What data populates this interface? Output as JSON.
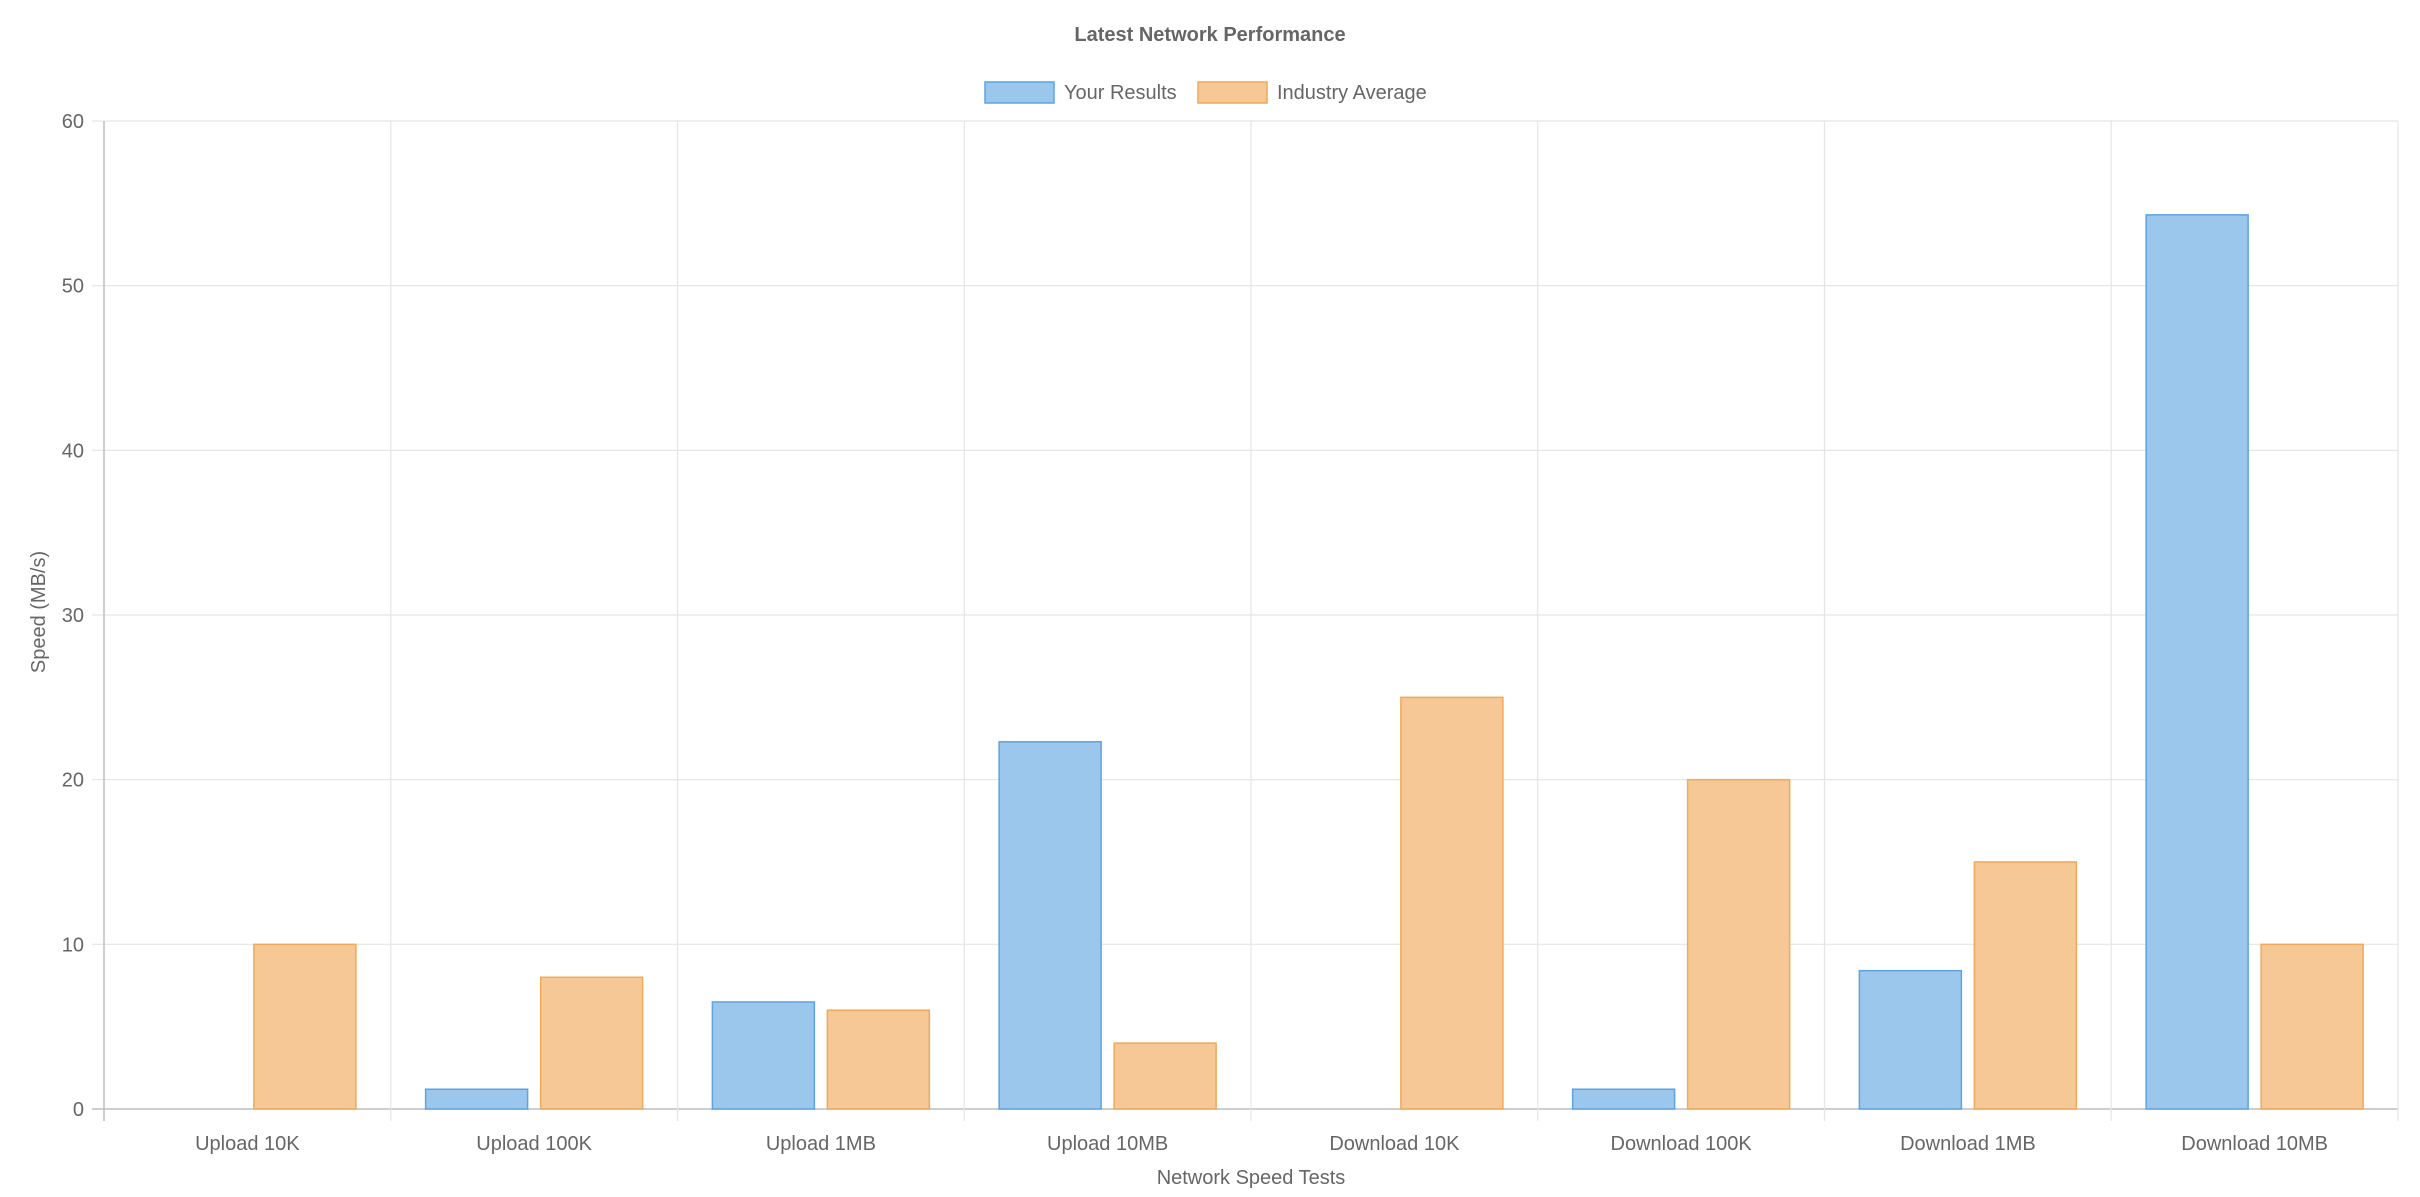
{
  "chart_data": {
    "type": "bar",
    "title": "Latest Network Performance",
    "xlabel": "Network Speed Tests",
    "ylabel": "Speed (MB/s)",
    "categories": [
      "Upload 10K",
      "Upload 100K",
      "Upload 1MB",
      "Upload 10MB",
      "Download 10K",
      "Download 100K",
      "Download 1MB",
      "Download 10MB"
    ],
    "series": [
      {
        "name": "Your Results",
        "values": [
          0,
          1.2,
          6.5,
          22.3,
          0,
          1.2,
          8.4,
          54.3
        ],
        "fill": "#9bc7ed",
        "stroke": "#5ea3e0"
      },
      {
        "name": "Industry Average",
        "values": [
          10,
          8,
          6,
          4,
          25,
          20,
          15,
          10
        ],
        "fill": "#f6c896",
        "stroke": "#f0a957"
      }
    ],
    "ylim": [
      0,
      60
    ],
    "yticks": [
      "0",
      "10",
      "20",
      "30",
      "40",
      "50",
      "60"
    ],
    "grid": true,
    "legend_position": "top-center"
  }
}
